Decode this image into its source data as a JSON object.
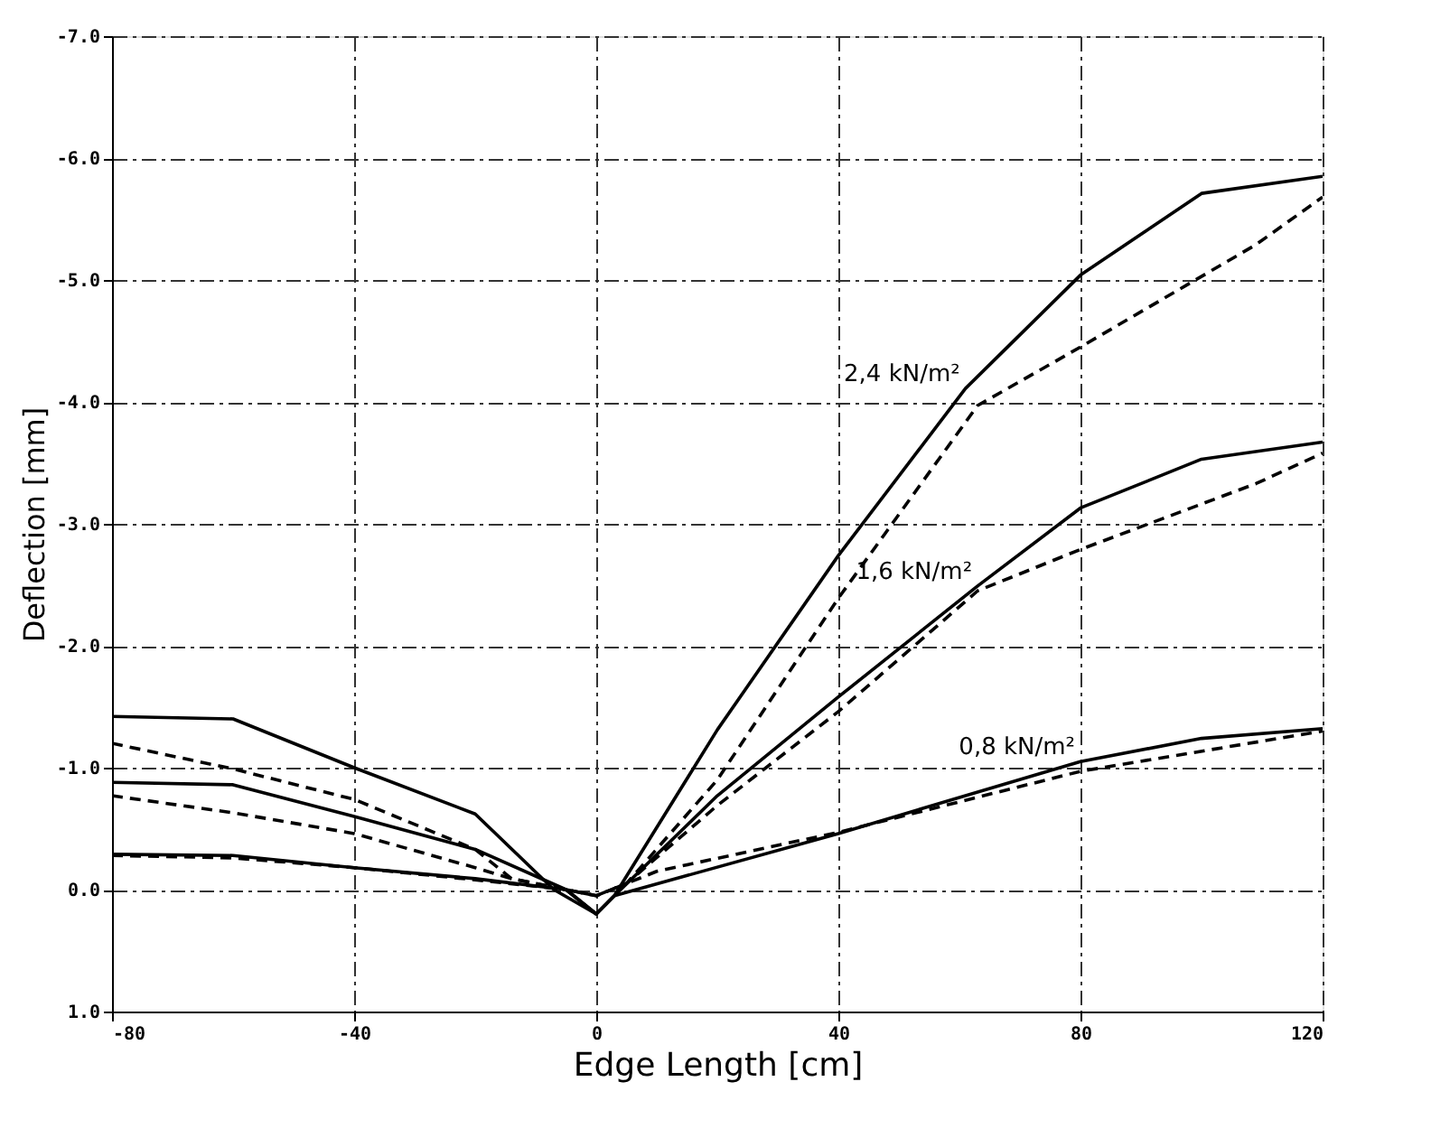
{
  "chart_data": {
    "type": "line",
    "xlabel": "Edge Length [cm]",
    "ylabel": "Deflection [mm]",
    "xlim": [
      -80,
      120
    ],
    "xticks": [
      -80,
      -40,
      0,
      40,
      80,
      120
    ],
    "ylim": [
      1.0,
      -7.0
    ],
    "yticks": [
      {
        "value": -7,
        "label": "-7.0"
      },
      {
        "value": -6,
        "label": "-6.0"
      },
      {
        "value": -5,
        "label": "-5.0"
      },
      {
        "value": -4,
        "label": "-4.0"
      },
      {
        "value": -3,
        "label": "-3.0"
      },
      {
        "value": -2,
        "label": "-2.0"
      },
      {
        "value": -1,
        "label": "-1.0"
      },
      {
        "value": 0,
        "label": "0.0"
      },
      {
        "value": 1,
        "label": "1.0"
      }
    ],
    "grid": true,
    "marker": "none",
    "series": [
      {
        "name": "2,4 kN/m²",
        "color": "#000000",
        "line_style": "solid",
        "x": [
          -80,
          -60,
          -40,
          -20,
          -7,
          0,
          3,
          20,
          40,
          61,
          80,
          100,
          120
        ],
        "values": [
          -1.42,
          -1.4,
          -1.0,
          -0.62,
          0.0,
          0.2,
          0.05,
          -1.31,
          -2.74,
          -4.11,
          -5.04,
          -5.71,
          -5.85
        ]
      },
      {
        "color": "#000000",
        "line_style": "dashed",
        "x": [
          -80,
          -60,
          -40,
          -20,
          -14,
          0,
          5,
          20,
          40,
          63,
          80,
          109,
          120
        ],
        "values": [
          -1.2,
          -0.99,
          -0.74,
          -0.33,
          -0.09,
          0.05,
          -0.05,
          -0.9,
          -2.39,
          -3.97,
          -4.45,
          -5.29,
          -5.68
        ]
      },
      {
        "name": "1,6 kN/m²",
        "color": "#000000",
        "line_style": "solid",
        "x": [
          -80,
          -60,
          -40,
          -20,
          -5,
          0,
          3,
          20,
          40,
          63,
          80,
          100,
          120
        ],
        "values": [
          -0.88,
          -0.86,
          -0.6,
          -0.33,
          0.0,
          0.2,
          0.05,
          -0.77,
          -1.58,
          -2.49,
          -3.13,
          -3.53,
          -3.67
        ]
      },
      {
        "color": "#000000",
        "line_style": "dashed",
        "x": [
          -80,
          -60,
          -40,
          -20,
          -14,
          0,
          5,
          20,
          40,
          63,
          80,
          109,
          120
        ],
        "values": [
          -0.77,
          -0.63,
          -0.46,
          -0.18,
          -0.09,
          0.05,
          -0.05,
          -0.69,
          -1.46,
          -2.45,
          -2.79,
          -3.33,
          -3.58
        ]
      },
      {
        "name": "0,8 kN/m²",
        "color": "#000000",
        "line_style": "solid",
        "x": [
          -80,
          -60,
          -40,
          -20,
          -5,
          0,
          3,
          40,
          80,
          100,
          120
        ],
        "values": [
          -0.29,
          -0.28,
          -0.18,
          -0.09,
          0.0,
          0.2,
          0.05,
          -0.46,
          -1.05,
          -1.24,
          -1.32
        ]
      },
      {
        "color": "#000000",
        "line_style": "dashed",
        "x": [
          -80,
          -60,
          -40,
          -20,
          -5,
          0,
          5,
          10,
          40,
          80,
          120
        ],
        "values": [
          -0.28,
          -0.26,
          -0.18,
          -0.08,
          0.0,
          0.05,
          -0.05,
          -0.15,
          -0.47,
          -0.97,
          -1.3
        ]
      }
    ]
  }
}
